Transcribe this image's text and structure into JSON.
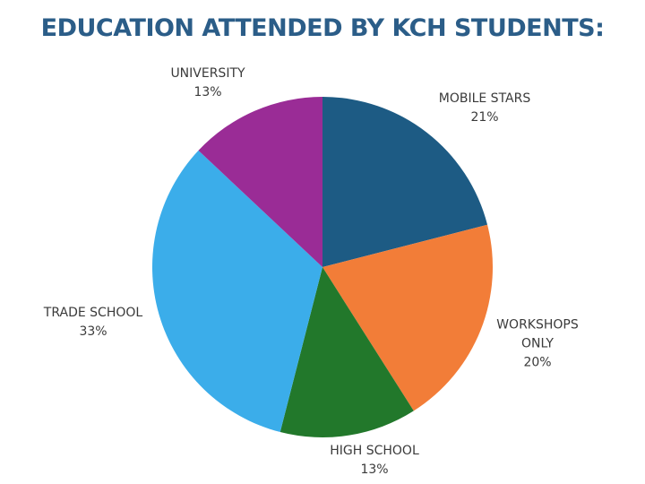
{
  "chart_data": {
    "type": "pie",
    "title": "EDUCATION ATTENDED BY KCH STUDENTS:",
    "categories": [
      "MOBILE STARS",
      "WORKSHOPS ONLY",
      "HIGH SCHOOL",
      "TRADE SCHOOL",
      "UNIVERSITY"
    ],
    "values": [
      21,
      20,
      13,
      33,
      13
    ],
    "value_labels": [
      "21%",
      "20%",
      "13%",
      "33%",
      "13%"
    ],
    "colors": [
      "#1d5b84",
      "#f27d38",
      "#22782b",
      "#3badea",
      "#9a2c96"
    ]
  }
}
